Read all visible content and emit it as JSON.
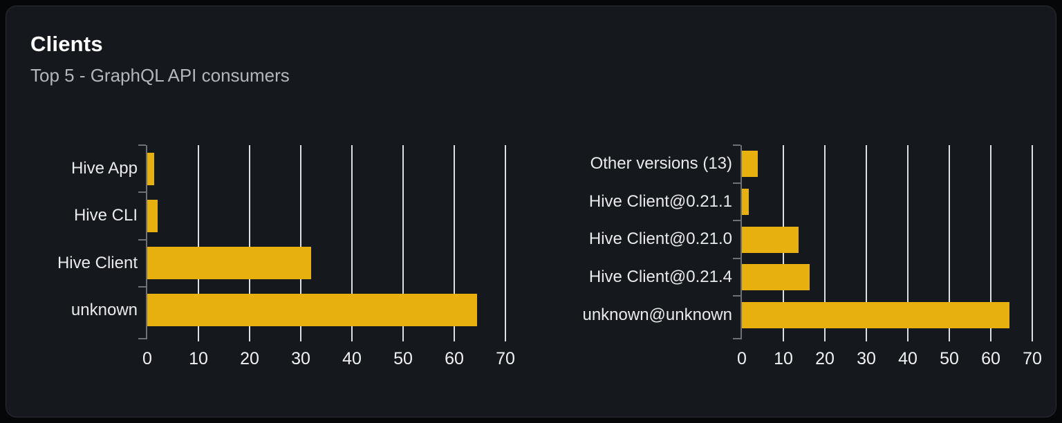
{
  "card": {
    "title": "Clients",
    "subtitle": "Top 5 - GraphQL API consumers"
  },
  "colors": {
    "page_background": "#060709",
    "card_background": "#15181d",
    "card_border": "#2a2e36",
    "bar": "#e8b00e",
    "gridline": "#dbe0ea",
    "axis": "#6e7176",
    "category_label": "#e9eaec",
    "tick_label": "#f0f1f4",
    "title": "#ffffff",
    "subtitle": "#b2b7be"
  },
  "chart_data": [
    {
      "type": "bar",
      "orientation": "horizontal",
      "name": "clients-by-name",
      "categories": [
        "Hive App",
        "Hive CLI",
        "Hive Client",
        "unknown"
      ],
      "values": [
        1.3,
        2.0,
        32.0,
        64.4
      ],
      "xticks": [
        0,
        10,
        20,
        30,
        40,
        50,
        60,
        70
      ],
      "xlim": [
        0,
        70
      ],
      "grid": true,
      "legend": false
    },
    {
      "type": "bar",
      "orientation": "horizontal",
      "name": "clients-by-version",
      "categories": [
        "Other versions (13)",
        "Hive Client@0.21.1",
        "Hive Client@0.21.0",
        "Hive Client@0.21.4",
        "unknown@unknown"
      ],
      "values": [
        3.8,
        1.7,
        13.6,
        16.4,
        64.5
      ],
      "xticks": [
        0,
        10,
        20,
        30,
        40,
        50,
        60,
        70
      ],
      "xlim": [
        0,
        70
      ],
      "grid": true,
      "legend": false
    }
  ]
}
